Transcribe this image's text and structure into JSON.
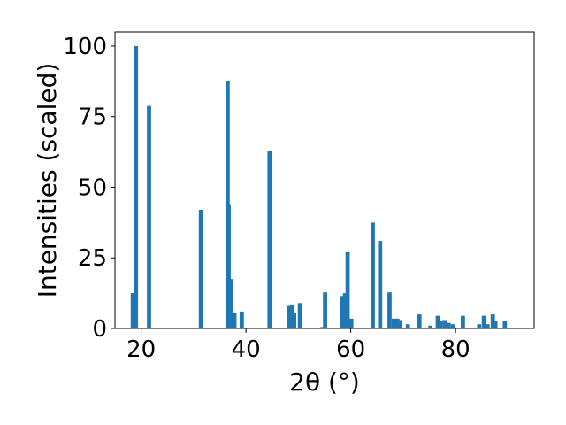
{
  "chart_data": {
    "type": "bar",
    "xlabel": "2θ (°)",
    "ylabel": "Intensities (scaled)",
    "xlim": [
      15,
      95
    ],
    "ylim": [
      0,
      105
    ],
    "xticks": [
      20,
      40,
      60,
      80
    ],
    "yticks": [
      0,
      25,
      50,
      75,
      100
    ],
    "bar_color": "#1f77b4",
    "bar_width": 0.8,
    "grid": false,
    "series": [
      {
        "x": [
          18.4,
          19.0,
          21.5,
          31.4,
          36.5,
          36.7,
          37.2,
          37.8,
          39.2,
          44.5,
          48.3,
          48.8,
          49.2,
          50.3,
          54.6,
          55.1,
          58.4,
          58.9,
          59.4,
          60.1,
          64.2,
          65.6,
          67.4,
          68.2,
          68.9,
          69.4,
          70.9,
          73.1,
          75.2,
          76.6,
          77.1,
          77.9,
          78.7,
          79.5,
          81.4,
          84.5,
          85.4,
          86.1,
          87.1,
          87.6,
          89.4
        ],
        "values": [
          12.5,
          100,
          78.8,
          42,
          87.5,
          44,
          17.5,
          5.5,
          6,
          63,
          8,
          8.5,
          5.5,
          9,
          0.5,
          12.8,
          11.5,
          12.5,
          27,
          3.5,
          37.5,
          31,
          12.8,
          3.5,
          3.5,
          3,
          1.5,
          5,
          1,
          4.5,
          2.5,
          3,
          2,
          1.5,
          4.5,
          1.5,
          4.5,
          1.5,
          5,
          2.5,
          2.5
        ]
      }
    ]
  }
}
